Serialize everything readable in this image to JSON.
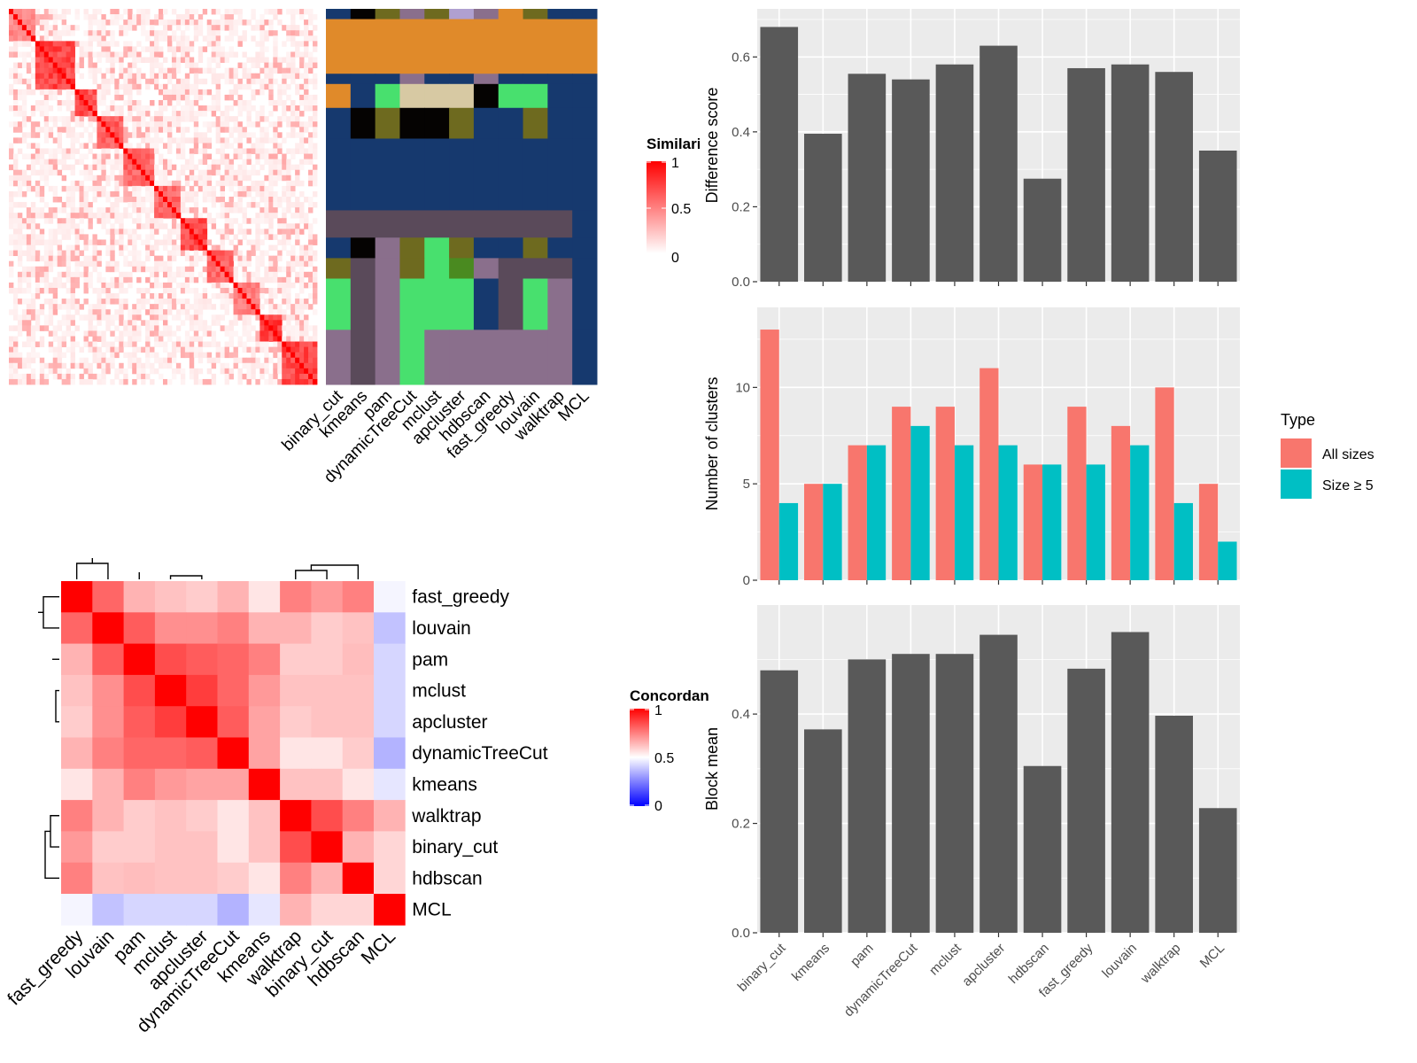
{
  "methods_order": [
    "binary_cut",
    "kmeans",
    "pam",
    "dynamicTreeCut",
    "mclust",
    "apcluster",
    "hdbscan",
    "fast_greedy",
    "louvain",
    "walktrap",
    "MCL"
  ],
  "similarity_legend": {
    "title": "Similarity",
    "ticks": [
      "1",
      "0.5",
      "0"
    ],
    "color_high": "#ff0000",
    "color_low": "#ffffff"
  },
  "concordance_legend": {
    "title": "Concordance",
    "ticks": [
      "1",
      "0.5",
      "0"
    ],
    "color_high": "#ff0000",
    "color_mid": "#ffffff",
    "color_low": "#0000ff"
  },
  "similarity_blocks": [
    {
      "size": 6,
      "value": 0.55
    },
    {
      "size": 9,
      "value": 0.85
    },
    {
      "size": 5,
      "value": 0.8
    },
    {
      "size": 6,
      "value": 0.75
    },
    {
      "size": 7,
      "value": 0.7
    },
    {
      "size": 6,
      "value": 0.7
    },
    {
      "size": 6,
      "value": 0.85
    },
    {
      "size": 6,
      "value": 0.7
    },
    {
      "size": 6,
      "value": 0.6
    },
    {
      "size": 5,
      "value": 0.9
    },
    {
      "size": 8,
      "value": 0.85
    }
  ],
  "cluster_strip": {
    "palette": [
      "#16396e",
      "#e08a2a",
      "#6e6a1f",
      "#8a6f8c",
      "#050302",
      "#d7c9a3",
      "#48e06e",
      "#5a4a5a",
      "#a08359",
      "#4a8a20",
      "#b0a0d0"
    ],
    "rows": [
      {
        "h": 3,
        "c": [
          0,
          4,
          2,
          3,
          2,
          10,
          3,
          1,
          2,
          0,
          0
        ]
      },
      {
        "h": 16,
        "c": [
          1,
          1,
          1,
          1,
          1,
          1,
          1,
          1,
          1,
          1,
          1
        ]
      },
      {
        "h": 3,
        "c": [
          0,
          0,
          0,
          3,
          0,
          0,
          3,
          0,
          0,
          0,
          0
        ]
      },
      {
        "h": 7,
        "c": [
          1,
          0,
          6,
          5,
          5,
          5,
          4,
          6,
          6,
          0,
          0
        ]
      },
      {
        "h": 9,
        "c": [
          0,
          4,
          2,
          4,
          4,
          2,
          0,
          0,
          2,
          0,
          0
        ]
      },
      {
        "h": 21,
        "c": [
          0,
          0,
          0,
          0,
          0,
          0,
          0,
          0,
          0,
          0,
          0
        ]
      },
      {
        "h": 8,
        "c": [
          7,
          7,
          7,
          7,
          7,
          7,
          7,
          7,
          7,
          7,
          0
        ]
      },
      {
        "h": 6,
        "c": [
          0,
          4,
          3,
          2,
          6,
          2,
          0,
          0,
          2,
          0,
          0
        ]
      },
      {
        "h": 6,
        "c": [
          2,
          7,
          3,
          2,
          6,
          9,
          3,
          7,
          7,
          7,
          0
        ]
      },
      {
        "h": 15,
        "c": [
          6,
          7,
          3,
          6,
          6,
          6,
          0,
          7,
          6,
          3,
          0
        ]
      },
      {
        "h": 16,
        "c": [
          3,
          7,
          3,
          6,
          3,
          3,
          3,
          3,
          3,
          3,
          0
        ]
      }
    ]
  },
  "concordance": {
    "order": [
      "fast_greedy",
      "louvain",
      "pam",
      "mclust",
      "apcluster",
      "dynamicTreeCut",
      "kmeans",
      "walktrap",
      "binary_cut",
      "hdbscan",
      "MCL"
    ],
    "matrix": [
      [
        1.0,
        0.8,
        0.65,
        0.62,
        0.6,
        0.65,
        0.55,
        0.75,
        0.7,
        0.75,
        0.48
      ],
      [
        0.8,
        1.0,
        0.82,
        0.72,
        0.72,
        0.75,
        0.65,
        0.65,
        0.6,
        0.62,
        0.38
      ],
      [
        0.65,
        0.82,
        1.0,
        0.85,
        0.82,
        0.8,
        0.75,
        0.6,
        0.6,
        0.63,
        0.42
      ],
      [
        0.62,
        0.72,
        0.85,
        1.0,
        0.88,
        0.8,
        0.7,
        0.62,
        0.62,
        0.62,
        0.42
      ],
      [
        0.6,
        0.72,
        0.82,
        0.88,
        1.0,
        0.82,
        0.68,
        0.6,
        0.62,
        0.62,
        0.42
      ],
      [
        0.65,
        0.75,
        0.8,
        0.8,
        0.82,
        1.0,
        0.68,
        0.55,
        0.55,
        0.6,
        0.35
      ],
      [
        0.55,
        0.65,
        0.75,
        0.7,
        0.68,
        0.68,
        1.0,
        0.62,
        0.62,
        0.55,
        0.45
      ],
      [
        0.75,
        0.65,
        0.6,
        0.62,
        0.6,
        0.55,
        0.62,
        1.0,
        0.85,
        0.75,
        0.65
      ],
      [
        0.7,
        0.6,
        0.6,
        0.62,
        0.62,
        0.55,
        0.62,
        0.85,
        1.0,
        0.65,
        0.58
      ],
      [
        0.75,
        0.62,
        0.63,
        0.62,
        0.62,
        0.6,
        0.55,
        0.75,
        0.65,
        1.0,
        0.58
      ],
      [
        0.48,
        0.38,
        0.42,
        0.42,
        0.42,
        0.35,
        0.45,
        0.65,
        0.58,
        0.58,
        1.0
      ]
    ]
  },
  "chart_data": [
    {
      "type": "bar",
      "categories": [
        "binary_cut",
        "kmeans",
        "pam",
        "dynamicTreeCut",
        "mclust",
        "apcluster",
        "hdbscan",
        "fast_greedy",
        "louvain",
        "walktrap",
        "MCL"
      ],
      "values": [
        0.68,
        0.395,
        0.555,
        0.54,
        0.58,
        0.63,
        0.275,
        0.57,
        0.58,
        0.56,
        0.35
      ],
      "ylabel": "Difference score",
      "ylim": [
        0,
        0.7
      ],
      "yticks": [
        "0.0",
        "0.2",
        "0.4",
        "0.6"
      ],
      "color": "#595959",
      "grid": true
    },
    {
      "type": "bar",
      "categories": [
        "binary_cut",
        "kmeans",
        "pam",
        "dynamicTreeCut",
        "mclust",
        "apcluster",
        "hdbscan",
        "fast_greedy",
        "louvain",
        "walktrap",
        "MCL"
      ],
      "series": [
        {
          "name": "All sizes",
          "values": [
            13,
            5,
            7,
            9,
            9,
            11,
            6,
            9,
            8,
            10,
            5
          ],
          "color": "#f8766d"
        },
        {
          "name": "Size ≥ 5",
          "values": [
            4,
            5,
            7,
            8,
            7,
            7,
            6,
            6,
            7,
            4,
            2
          ],
          "color": "#00bfc4"
        }
      ],
      "ylabel": "Number of clusters",
      "ylim": [
        0,
        13.6
      ],
      "yticks": [
        "0",
        "5",
        "10"
      ],
      "legend_title": "Type",
      "legend": "right",
      "grid": true
    },
    {
      "type": "bar",
      "categories": [
        "binary_cut",
        "kmeans",
        "pam",
        "dynamicTreeCut",
        "mclust",
        "apcluster",
        "hdbscan",
        "fast_greedy",
        "louvain",
        "walktrap",
        "MCL"
      ],
      "values": [
        0.48,
        0.372,
        0.5,
        0.51,
        0.51,
        0.545,
        0.305,
        0.483,
        0.55,
        0.397,
        0.228
      ],
      "ylabel": "Block mean",
      "ylim": [
        0,
        0.58
      ],
      "yticks": [
        "0.0",
        "0.2",
        "0.4"
      ],
      "color": "#595959",
      "grid": true
    }
  ]
}
